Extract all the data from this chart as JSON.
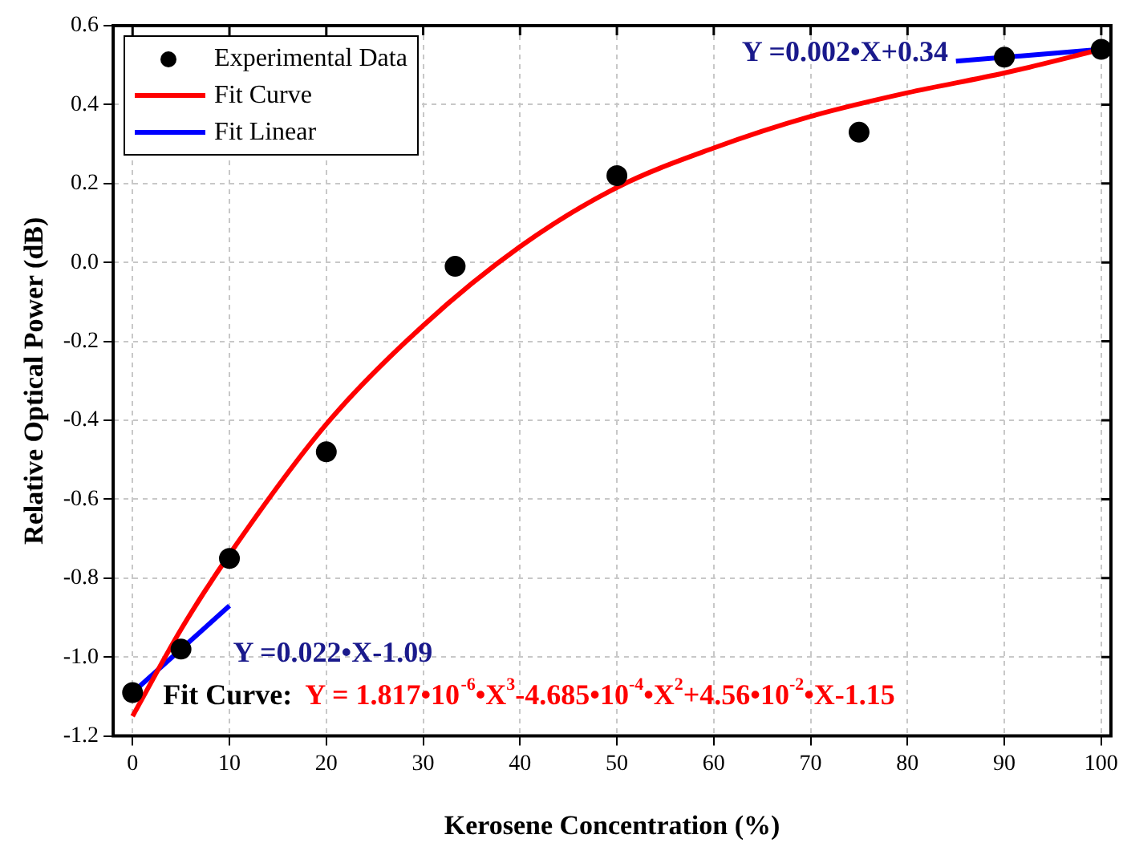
{
  "chart_data": {
    "type": "scatter",
    "xlabel": "Kerosene Concentration (%)",
    "ylabel": "Relative Optical Power (dB)",
    "xlim": [
      -2,
      101
    ],
    "xticks": [
      0,
      10,
      20,
      30,
      40,
      50,
      60,
      70,
      80,
      90,
      100
    ],
    "ylim": [
      -1.2,
      0.6
    ],
    "yticks": [
      -1.2,
      {
        "value": -1,
        "label": "-1.0"
      },
      -0.8,
      -0.6,
      -0.4,
      -0.2,
      {
        "value": 0,
        "label": "0.0"
      },
      0.2,
      0.4,
      0.6
    ],
    "grid": true,
    "legend": "top left",
    "series": [
      {
        "name": "Experimental Data",
        "type": "scatter",
        "marker": "circle",
        "color": "#000000",
        "x": [
          0,
          5,
          10,
          20,
          33.3,
          50,
          75,
          90,
          100
        ],
        "values": [
          -1.09,
          -0.98,
          -0.75,
          -0.48,
          -0.01,
          0.22,
          0.33,
          0.52,
          0.54
        ]
      },
      {
        "name": "Fit Curve",
        "type": "line",
        "color": "#ff0000",
        "x": [
          0,
          5,
          10,
          20,
          30,
          40,
          50,
          60,
          70,
          80,
          90,
          100
        ],
        "values": [
          -1.15,
          -0.93,
          -0.74,
          -0.41,
          -0.16,
          0.04,
          0.19,
          0.29,
          0.37,
          0.43,
          0.48,
          0.54
        ]
      },
      {
        "name": "Fit Linear",
        "type": "line",
        "color": "#0000ff",
        "x": [
          0,
          10
        ],
        "values": [
          -1.09,
          -0.87
        ]
      },
      {
        "type": "line",
        "color": "#0000ff",
        "x": [
          85,
          100
        ],
        "values": [
          0.51,
          0.54
        ]
      }
    ],
    "annotations": [
      "Y =0.002•X+0.34",
      "Y =0.022•X-1.09",
      "Fit Curve:",
      "Y = 1.817•10$^{-6}$•X$^{3}$-4.685•10$^{-4}$•X$^{2}$+4.56•10$^{-2}$•X-1.15"
    ]
  }
}
